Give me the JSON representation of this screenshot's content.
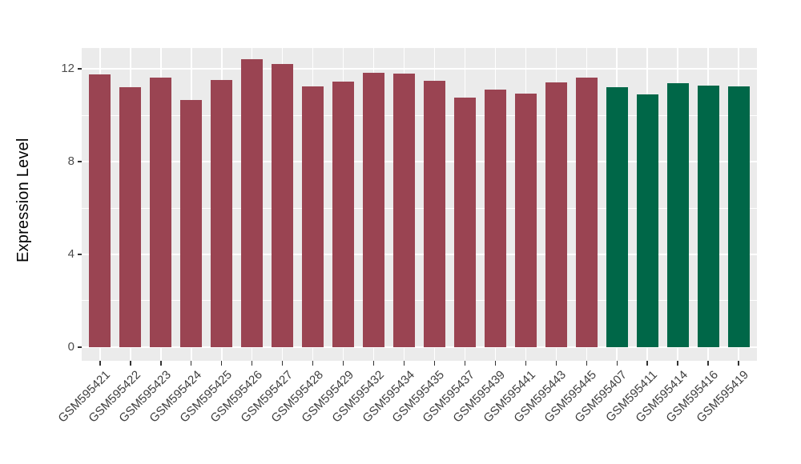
{
  "chart_data": {
    "type": "bar",
    "title": "",
    "xlabel": "",
    "ylabel": "Expression Level",
    "categories": [
      "GSM595421",
      "GSM595422",
      "GSM595423",
      "GSM595424",
      "GSM595425",
      "GSM595426",
      "GSM595427",
      "GSM595428",
      "GSM595429",
      "GSM595432",
      "GSM595434",
      "GSM595435",
      "GSM595437",
      "GSM595439",
      "GSM595441",
      "GSM595443",
      "GSM595445",
      "GSM595407",
      "GSM595411",
      "GSM595414",
      "GSM595416",
      "GSM595419"
    ],
    "values": [
      11.76,
      11.21,
      11.62,
      10.66,
      11.52,
      12.41,
      12.21,
      11.26,
      11.45,
      11.83,
      11.79,
      11.48,
      10.76,
      11.1,
      10.95,
      11.41,
      11.62,
      11.21,
      10.9,
      11.38,
      11.28,
      11.24
    ],
    "groups": [
      "group1",
      "group1",
      "group1",
      "group1",
      "group1",
      "group1",
      "group1",
      "group1",
      "group1",
      "group1",
      "group1",
      "group1",
      "group1",
      "group1",
      "group1",
      "group1",
      "group1",
      "group2",
      "group2",
      "group2",
      "group2",
      "group2"
    ],
    "group_colors": {
      "group1": "#9A4452",
      "group2": "#006748"
    },
    "yticks": [
      0,
      4,
      8,
      12
    ],
    "yticks_minor": [
      2,
      6,
      10
    ],
    "ylim": [
      -0.59,
      12.9
    ],
    "grid": true,
    "legend_position": "none",
    "panel_bg": "#EBEBEB",
    "grid_color": "#FFFFFF",
    "axis_text_color": "#4d4d4d",
    "tick_color": "#333333"
  }
}
